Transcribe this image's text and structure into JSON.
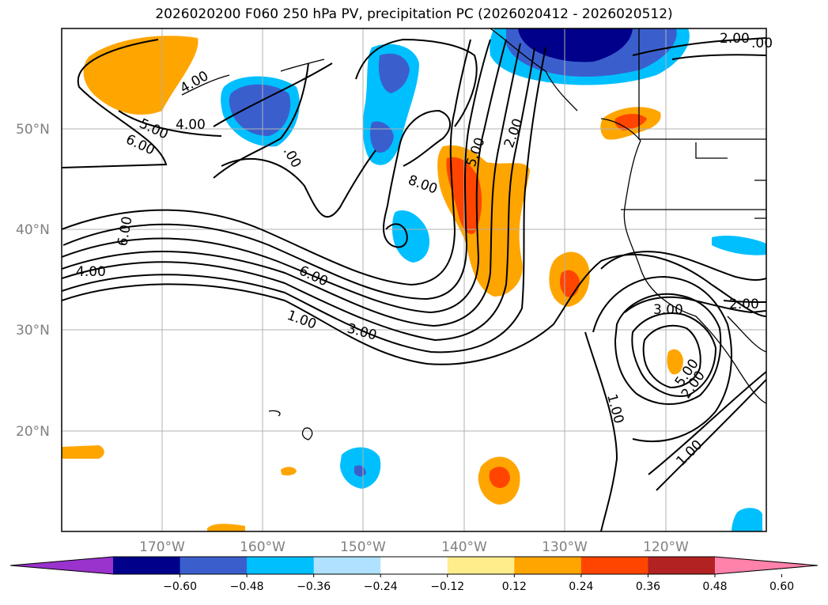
{
  "title": "2026020200 F060 250 hPa PV, precipitation PC (2026020412 - 2026020512)",
  "map": {
    "lat_labels": [
      "50°N",
      "40°N",
      "30°N",
      "20°N"
    ],
    "lon_labels": [
      "170°W",
      "160°W",
      "150°W",
      "140°W",
      "130°W",
      "120°W"
    ],
    "contour_labels": [
      "4.00",
      "5.00",
      "6.00",
      "4.00",
      ".00",
      "6.00",
      "4.00",
      "8.00",
      "5.00",
      "2.00",
      "2.00",
      "6.00",
      "1.00",
      "3.00",
      "3.00",
      "2.00",
      "1.00",
      "5.00",
      "2.00",
      "1.00",
      ".00"
    ],
    "colors": {
      "contour": "#000000",
      "coast": "#000000",
      "grid": "#b0b0b0"
    }
  },
  "colorbar": {
    "ticks": [
      "−0.60",
      "−0.48",
      "−0.36",
      "−0.24",
      "−0.12",
      "0.12",
      "0.24",
      "0.36",
      "0.48",
      "0.60"
    ],
    "colors": [
      "#9a32cd",
      "#00008b",
      "#3a5fcd",
      "#00bfff",
      "#b0e2ff",
      "#ffffff",
      "#ffec8b",
      "#ffa500",
      "#ff4500",
      "#b22222",
      "#ff82ab"
    ]
  }
}
